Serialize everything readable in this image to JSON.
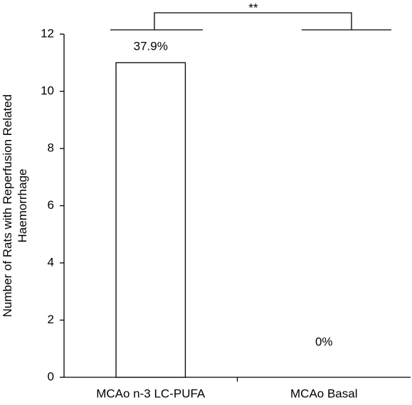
{
  "chart_data": {
    "type": "bar",
    "ylabel": [
      "Number of Rats with Reperfusion Related",
      "Haemorrhage"
    ],
    "categories": [
      "MCAo n-3 LC-PUFA",
      "MCAo Basal"
    ],
    "values": [
      11,
      0
    ],
    "annotations": [
      "37.9%",
      "0%"
    ],
    "significance": "**",
    "color": "#ffffff",
    "ylim": [
      0,
      12
    ],
    "yticks": [
      0,
      2,
      4,
      6,
      8,
      10,
      12
    ],
    "grid": false
  }
}
